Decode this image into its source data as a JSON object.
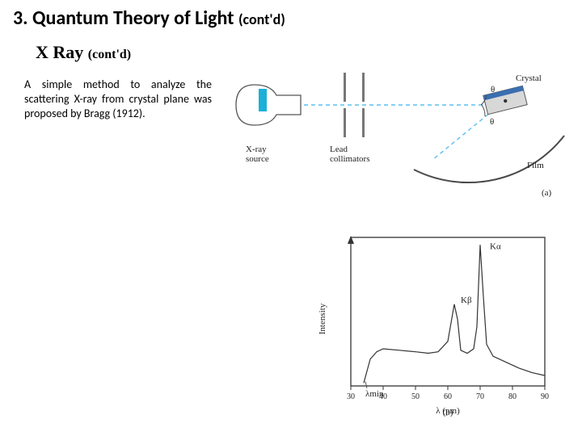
{
  "title": {
    "main": "3. Quantum Theory of Light",
    "contd": "(cont'd)"
  },
  "subtitle": {
    "main": "X Ray",
    "contd": "(cont'd)"
  },
  "body": "A simple method to analyze the scattering X-ray from crystal plane was proposed by Bragg (1912).",
  "fig_a": {
    "labels": {
      "source": "X-ray\nsource",
      "collimators": "Lead\ncollimators",
      "crystal": "Crystal",
      "film": "Film",
      "theta1": "θ",
      "theta2": "θ",
      "tag": "(a)"
    },
    "colors": {
      "dashed": "#5fbff0",
      "solid_arrow": "#1bb0d8",
      "collimator": "#777777",
      "bulb_stroke": "#555555",
      "bulb_fill": "#ffffff",
      "filament": "#1bb0d8",
      "crystal_fill": "#d8d8d8",
      "crystal_stroke": "#555555",
      "crystal_blue": "#3a6fb0",
      "arc": "#4a4a4a",
      "text": "#222222"
    }
  },
  "fig_b": {
    "type": "line",
    "xlabel": "λ (pm)",
    "ylabel": "Intensity",
    "xlim": [
      30,
      90
    ],
    "xticks": [
      30,
      40,
      50,
      60,
      70,
      80,
      90
    ],
    "ylim": [
      0,
      100
    ],
    "lambda_min_label": "λmin",
    "k_alpha_label": "Kα",
    "k_beta_label": "Kβ",
    "tag": "(b)",
    "points": [
      [
        34,
        2
      ],
      [
        36,
        18
      ],
      [
        38,
        23
      ],
      [
        40,
        25
      ],
      [
        45,
        24
      ],
      [
        50,
        23
      ],
      [
        54,
        22
      ],
      [
        57,
        23
      ],
      [
        60,
        30
      ],
      [
        62,
        55
      ],
      [
        63,
        45
      ],
      [
        64,
        24
      ],
      [
        66,
        22
      ],
      [
        68,
        25
      ],
      [
        69,
        40
      ],
      [
        70,
        95
      ],
      [
        71,
        60
      ],
      [
        72,
        28
      ],
      [
        74,
        20
      ],
      [
        78,
        16
      ],
      [
        82,
        12
      ],
      [
        86,
        9
      ],
      [
        90,
        7
      ]
    ],
    "colors": {
      "frame": "#333333",
      "curve": "#333333",
      "text": "#222222",
      "bg": "#ffffff"
    },
    "line_width": 1.2
  }
}
